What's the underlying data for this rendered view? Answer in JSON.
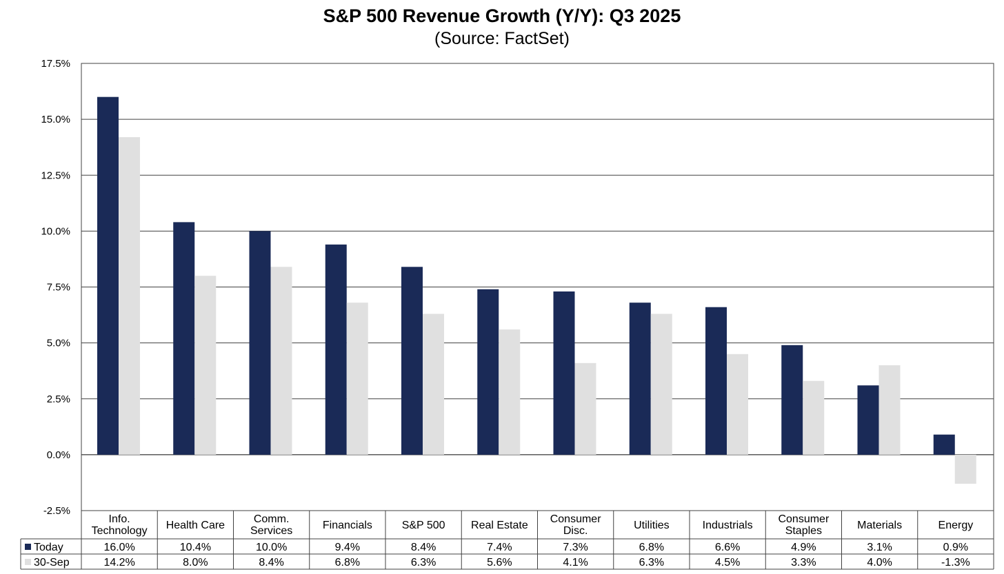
{
  "chart_data": {
    "type": "bar",
    "title": "S&P 500 Revenue Growth (Y/Y):  Q3 2025",
    "subtitle": "(Source: FactSet)",
    "ylim": [
      -2.5,
      17.5
    ],
    "yticks": [
      "-2.5%",
      "0.0%",
      "2.5%",
      "5.0%",
      "7.5%",
      "10.0%",
      "12.5%",
      "15.0%",
      "17.5%"
    ],
    "grid": true,
    "legend": "bottom-left (data table)",
    "categories": [
      [
        "Info.",
        "Technology"
      ],
      [
        "Health Care"
      ],
      [
        "Comm.",
        "Services"
      ],
      [
        "Financials"
      ],
      [
        "S&P 500"
      ],
      [
        "Real Estate"
      ],
      [
        "Consumer",
        "Disc."
      ],
      [
        "Utilities"
      ],
      [
        "Industrials"
      ],
      [
        "Consumer",
        "Staples"
      ],
      [
        "Materials"
      ],
      [
        "Energy"
      ]
    ],
    "series": [
      {
        "name": "Today",
        "color": "#1a2a57",
        "values": [
          16.0,
          10.4,
          10.0,
          9.4,
          8.4,
          7.4,
          7.3,
          6.8,
          6.6,
          4.9,
          3.1,
          0.9
        ],
        "labels": [
          "16.0%",
          "10.4%",
          "10.0%",
          "9.4%",
          "8.4%",
          "7.4%",
          "7.3%",
          "6.8%",
          "6.6%",
          "4.9%",
          "3.1%",
          "0.9%"
        ]
      },
      {
        "name": "30-Sep",
        "color": "#e0e0e0",
        "values": [
          14.2,
          8.0,
          8.4,
          6.8,
          6.3,
          5.6,
          4.1,
          6.3,
          4.5,
          3.3,
          4.0,
          -1.3
        ],
        "labels": [
          "14.2%",
          "8.0%",
          "8.4%",
          "6.8%",
          "6.3%",
          "5.6%",
          "4.1%",
          "6.3%",
          "4.5%",
          "3.3%",
          "4.0%",
          "-1.3%"
        ]
      }
    ]
  }
}
